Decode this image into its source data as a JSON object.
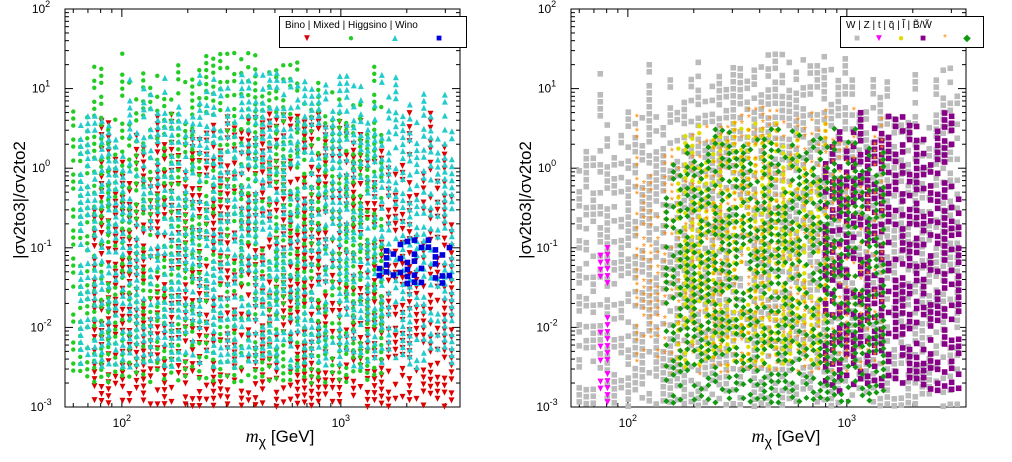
{
  "chart_data": [
    {
      "type": "scatter",
      "xscale": "log",
      "yscale": "log",
      "xlim": [
        55,
        3500
      ],
      "ylim": [
        0.001,
        100
      ],
      "xlabel": "m_χ [GeV]",
      "ylabel": "|σv_2to3|/σv_2to2",
      "xticks": [
        "10^2",
        "10^3"
      ],
      "yticks": [
        "10^-3",
        "10^-2",
        "10^-1",
        "10^0",
        "10^1",
        "10^2"
      ],
      "legend_placement": "top-right",
      "legend_header": "Bino | Mixed | Higgsino | Wino",
      "series": [
        {
          "name": "Bino",
          "color": "#dd0000",
          "marker": "triangle-down",
          "region": {
            "x_range": [
              75,
              3500
            ],
            "y_lower_log": -3,
            "y_upper_log": 0.7
          }
        },
        {
          "name": "Mixed",
          "color": "#22cc22",
          "marker": "circle",
          "region": {
            "x_range": [
              60,
              1600
            ],
            "y_lower_log": -2.7,
            "y_upper_log": 1.45
          }
        },
        {
          "name": "Higgsino",
          "color": "#22cccc",
          "marker": "triangle-up",
          "region": {
            "x_range": [
              65,
              3500
            ],
            "y_lower_log": -2.5,
            "y_upper_log": 1.2
          }
        },
        {
          "name": "Wino",
          "color": "#0000dd",
          "marker": "square",
          "region": {
            "x_range": [
              1500,
              3500
            ],
            "y_lower_log": -1.45,
            "y_upper_log": -0.9
          }
        }
      ]
    },
    {
      "type": "scatter",
      "xscale": "log",
      "yscale": "log",
      "xlim": [
        55,
        3500
      ],
      "ylim": [
        0.001,
        100
      ],
      "xlabel": "m_χ [GeV]",
      "ylabel": "|σv_2to3|/σv_2to2",
      "xticks": [
        "10^2",
        "10^3"
      ],
      "yticks": [
        "10^-3",
        "10^-2",
        "10^-1",
        "10^0",
        "10^1",
        "10^2"
      ],
      "legend_placement": "top-right",
      "legend_header": "W | Z | t | q̃ | l̃ | B̃/W̃",
      "series": [
        {
          "name": "W",
          "color": "#bbbbbb",
          "marker": "square",
          "region": {
            "x_range": [
              60,
              3500
            ],
            "y_lower_log": -3,
            "y_upper_log": 1.45
          }
        },
        {
          "name": "Z",
          "color": "#ff00ff",
          "marker": "triangle-down",
          "region": {
            "x_range": [
              75,
              82
            ],
            "y_lower_log": -3,
            "y_upper_log": -0.5
          }
        },
        {
          "name": "t",
          "color": "#dddd00",
          "marker": "circle",
          "region": {
            "x_range": [
              170,
              800
            ],
            "y_lower_log": -2.5,
            "y_upper_log": 0.6
          }
        },
        {
          "name": "q̃",
          "color": "#880088",
          "marker": "square",
          "region": {
            "x_range": [
              800,
              3500
            ],
            "y_lower_log": -2.8,
            "y_upper_log": 0.7
          }
        },
        {
          "name": "l̃",
          "color": "#ff8800",
          "marker": "asterisk",
          "region": {
            "x_range": [
              110,
              1500
            ],
            "y_lower_log": -2.6,
            "y_upper_log": 0.75
          }
        },
        {
          "name": "B̃/W̃",
          "color": "#119911",
          "marker": "diamond",
          "region": {
            "x_range": [
              150,
              1500
            ],
            "y_lower_log": -2.95,
            "y_upper_log": 0.5
          }
        }
      ]
    }
  ],
  "legend_left": {
    "header": "Bino | Mixed | Higgsino | Wino",
    "marker_colors": [
      "#dd0000",
      "#22cc22",
      "#22cccc",
      "#0000dd"
    ],
    "marker_glyphs": [
      "▼",
      "●",
      "▲",
      "■"
    ]
  },
  "legend_right": {
    "header": "W | Z | t | q̃ | l̃ | B̃/W̃",
    "marker_colors": [
      "#bbbbbb",
      "#ff00ff",
      "#dddd00",
      "#880088",
      "#ff8800",
      "#119911"
    ],
    "marker_glyphs": [
      "■",
      "▼",
      "●",
      "■",
      "*",
      "◆"
    ]
  },
  "axis_text": {
    "xlabel": "m",
    "xlabel_sub": "χ",
    "xlabel_unit": "[GeV]",
    "ylabel": "|σv2to3|/σv2to2"
  }
}
